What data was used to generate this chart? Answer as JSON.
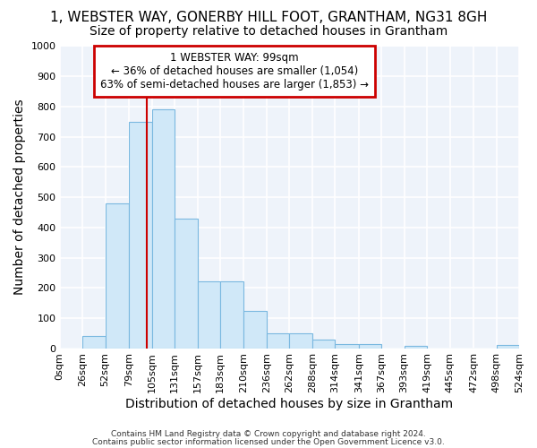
{
  "title1": "1, WEBSTER WAY, GONERBY HILL FOOT, GRANTHAM, NG31 8GH",
  "title2": "Size of property relative to detached houses in Grantham",
  "xlabel": "Distribution of detached houses by size in Grantham",
  "ylabel": "Number of detached properties",
  "bin_edges": [
    0,
    26,
    52,
    79,
    105,
    131,
    157,
    183,
    210,
    236,
    262,
    288,
    314,
    341,
    367,
    393,
    419,
    445,
    472,
    498,
    524
  ],
  "bar_heights": [
    0,
    40,
    480,
    750,
    790,
    430,
    220,
    220,
    125,
    50,
    50,
    28,
    15,
    15,
    0,
    8,
    0,
    0,
    0,
    10
  ],
  "bar_color": "#d0e8f8",
  "bar_edge_color": "#7ab8e0",
  "red_line_x": 99,
  "ylim": [
    0,
    1000
  ],
  "yticks": [
    0,
    100,
    200,
    300,
    400,
    500,
    600,
    700,
    800,
    900,
    1000
  ],
  "annotation_line1": "1 WEBSTER WAY: 99sqm",
  "annotation_line2": "← 36% of detached houses are smaller (1,054)",
  "annotation_line3": "63% of semi-detached houses are larger (1,853) →",
  "annotation_box_color": "#ffffff",
  "annotation_box_edge": "#cc0000",
  "footer1": "Contains HM Land Registry data © Crown copyright and database right 2024.",
  "footer2": "Contains public sector information licensed under the Open Government Licence v3.0.",
  "background_color": "#ffffff",
  "plot_bg_color": "#eef3fa",
  "grid_color": "#ffffff",
  "tick_label_fontsize": 8,
  "axis_label_fontsize": 10,
  "title1_fontsize": 11,
  "title2_fontsize": 10
}
